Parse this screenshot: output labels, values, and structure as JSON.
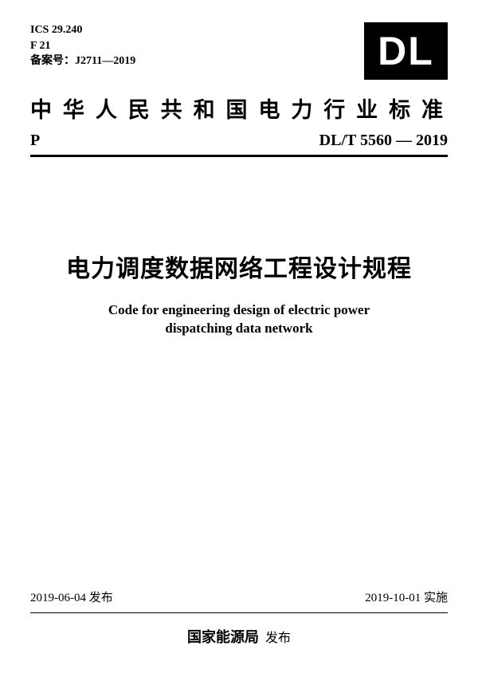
{
  "header": {
    "ics": "ICS 29.240",
    "code": "F 21",
    "filing": "备案号：J2711—2019",
    "logo_text": "DL",
    "main_cn": "中华人民共和国电力行业标准",
    "p_label": "P",
    "standard_no": "DL/T 5560 — 2019"
  },
  "title": {
    "cn": "电力调度数据网络工程设计规程",
    "en_line1": "Code for engineering design of electric power",
    "en_line2": "dispatching data network"
  },
  "dates": {
    "publish": "2019-06-04 发布",
    "effective": "2019-10-01 实施"
  },
  "issuer": {
    "org": "国家能源局",
    "action": "发布"
  },
  "colors": {
    "bg": "#ffffff",
    "fg": "#000000"
  }
}
